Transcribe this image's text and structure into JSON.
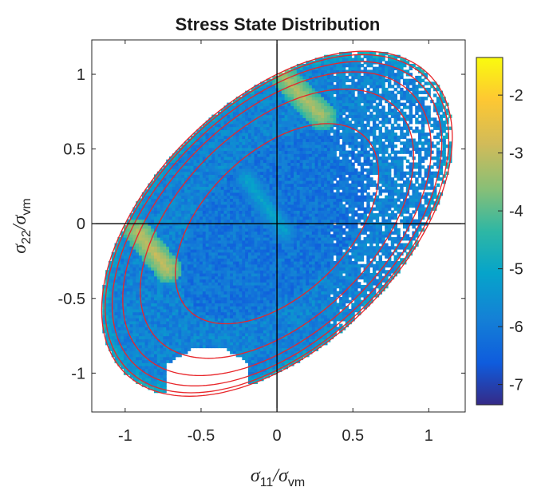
{
  "chart_data": {
    "type": "heatmap",
    "title": "Stress State Distribution",
    "xlabel": {
      "symbol": "σ",
      "sub1": "11",
      "sep": "/",
      "symbol2": "σ",
      "sub2": "vm"
    },
    "ylabel": {
      "symbol": "σ",
      "sub1": "22",
      "sep": "/",
      "symbol2": "σ",
      "sub2": "vm"
    },
    "xlim": [
      -1.22,
      1.24
    ],
    "ylim": [
      -1.26,
      1.23
    ],
    "xticks": [
      -1,
      -0.5,
      0,
      0.5,
      1
    ],
    "xtick_labels": [
      "-1",
      "-0.5",
      "0",
      "0.5",
      "1"
    ],
    "yticks": [
      -1,
      -0.5,
      0,
      0.5,
      1
    ],
    "ytick_labels": [
      "-1",
      "-0.5",
      "0",
      "0.5",
      "1"
    ],
    "grid": false,
    "crosshair_lines": {
      "x": 0,
      "y": 0
    },
    "colorbar": {
      "colormap": "parula",
      "range": [
        -7.35,
        -1.35
      ],
      "ticks": [
        -2,
        -3,
        -4,
        -5,
        -6,
        -7
      ],
      "tick_labels": [
        "-2",
        "-3",
        "-4",
        "-5",
        "-6",
        "-7"
      ],
      "position": "right"
    },
    "contours": {
      "color": "#e8262a",
      "description": "von Mises yield ellipses σ11² − σ11σ22 + σ22² = r²",
      "levels": [
        0.58,
        0.78,
        0.88,
        0.94,
        0.98,
        1.0
      ]
    },
    "distribution": {
      "grid_step": 0.02,
      "bins_count": "dense, filled inside the unit von Mises ellipse",
      "typical_value": -5.8,
      "bright_bands": [
        {
          "from": [
            0.05,
            0.98
          ],
          "to": [
            0.3,
            0.72
          ],
          "peak": -3.2
        },
        {
          "from": [
            -0.92,
            -0.05
          ],
          "to": [
            -0.72,
            -0.3
          ],
          "peak": -3.0
        },
        {
          "from": [
            -0.2,
            0.3
          ],
          "to": [
            0.05,
            -0.05
          ],
          "peak": -5.0
        }
      ],
      "empty_regions": [
        "white scattered cells for σ11 between about 0.35 and 1.0",
        "white gap near σ22 ≈ -0.9, σ11 between -0.7 and -0.2"
      ]
    }
  }
}
